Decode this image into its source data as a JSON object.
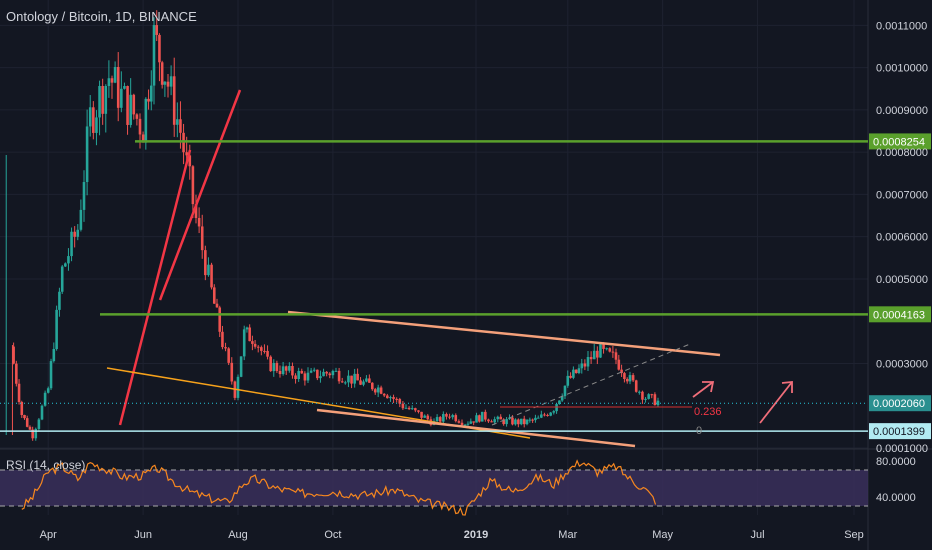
{
  "title": "Ontology / Bitcoin, 1D, BINANCE",
  "rsi_label": "RSI (14, close)",
  "colors": {
    "background": "#131722",
    "up": "#26a69a",
    "down": "#ef5350",
    "green_level": "#5aa02c",
    "trend_salmon": "#f4a07a",
    "trend_orange": "#f7a21b",
    "trend_red": "#f23645",
    "rsi_line": "#f7871f",
    "rsi_band": "#3a2f5a",
    "price_line": "#26c6da",
    "support_line": "#b2ebf2"
  },
  "chart_data": [
    {
      "type": "line",
      "series": [
        {
          "name": "",
          "x": [
            "2018-03-08",
            "2018-03-15",
            "2018-03-22",
            "2018-04-01",
            "2018-04-10",
            "2018-04-20",
            "2018-04-28",
            "2018-05-10",
            "2018-05-20",
            "2018-06-01",
            "2018-06-08",
            "2018-06-15",
            "2018-06-25",
            "2018-07-05",
            "2018-07-15",
            "2018-07-22",
            "2018-07-30",
            "2018-08-05",
            "2018-08-12",
            "2018-08-20",
            "2018-09-01",
            "2018-09-15",
            "2018-10-01",
            "2018-10-15",
            "2018-11-01",
            "2018-11-15",
            "2018-11-25",
            "2018-12-05",
            "2018-12-15",
            "2018-12-25",
            "2019-01-05",
            "2019-01-15",
            "2019-02-01",
            "2019-02-10",
            "2019-02-20",
            "2019-03-01",
            "2019-03-10",
            "2019-03-20",
            "2019-04-01",
            "2019-04-10",
            "2019-04-20",
            "2019-04-28"
          ],
          "values": [
            0.00034,
            0.00018,
            0.00013,
            0.00024,
            0.00052,
            0.00062,
            0.00088,
            0.00098,
            0.00092,
            0.00086,
            0.00107,
            0.00099,
            0.00085,
            0.00064,
            0.00047,
            0.00035,
            0.00023,
            0.00037,
            0.00036,
            0.0003,
            0.00028,
            0.00027,
            0.00028,
            0.00026,
            0.00024,
            0.0002,
            0.00018,
            0.00016,
            0.00018,
            0.00016,
            0.000175,
            0.000165,
            0.00016,
            0.000168,
            0.000195,
            0.00026,
            0.00029,
            0.00033,
            0.00031,
            0.00026,
            0.00022,
            0.00021
          ]
        }
      ],
      "y_ticks": [
        "0.0011000",
        "0.0010000",
        "0.0009000",
        "0.0008000",
        "0.0007000",
        "0.0006000",
        "0.0005000",
        "0.0003000",
        "0.0001000"
      ],
      "ylim": [
        0.0001,
        0.00116
      ],
      "x_ticks": [
        "Apr",
        "Jun",
        "Aug",
        "Oct",
        "2019",
        "Mar",
        "May",
        "Jul",
        "Sep"
      ],
      "levels": [
        {
          "label": "0.0008254",
          "value": 0.0008254
        },
        {
          "label": "0.0004163",
          "value": 0.0004163
        },
        {
          "label": "0.0002060",
          "value": 0.000206
        },
        {
          "label": "0.0001399",
          "value": 0.0001399
        }
      ],
      "fib_labels": [
        {
          "label": "0.236",
          "value": 0.000188
        },
        {
          "label": "0",
          "value": 0.000142
        }
      ],
      "grid": true
    },
    {
      "type": "line",
      "series": [
        {
          "name": "RSI (14, close)",
          "x": [
            "2018-03-15",
            "2018-03-22",
            "2018-04-01",
            "2018-04-10",
            "2018-04-20",
            "2018-04-28",
            "2018-05-10",
            "2018-05-20",
            "2018-06-01",
            "2018-06-10",
            "2018-06-20",
            "2018-07-01",
            "2018-07-15",
            "2018-07-25",
            "2018-08-05",
            "2018-08-12",
            "2018-08-25",
            "2018-09-10",
            "2018-10-01",
            "2018-10-20",
            "2018-11-10",
            "2018-11-25",
            "2018-12-10",
            "2018-12-25",
            "2019-01-10",
            "2019-01-25",
            "2019-02-10",
            "2019-02-20",
            "2019-03-01",
            "2019-03-10",
            "2019-03-20",
            "2019-04-01",
            "2019-04-10",
            "2019-04-20",
            "2019-04-28"
          ],
          "values": [
            28,
            40,
            68,
            74,
            60,
            78,
            70,
            62,
            64,
            72,
            58,
            46,
            38,
            34,
            56,
            60,
            50,
            44,
            46,
            42,
            48,
            36,
            30,
            24,
            58,
            46,
            62,
            54,
            70,
            80,
            68,
            74,
            60,
            48,
            33
          ]
        }
      ],
      "y_ticks": [
        "80.0000",
        "40.0000"
      ],
      "ylim": [
        20,
        90
      ],
      "bands": [
        70,
        30
      ]
    }
  ]
}
